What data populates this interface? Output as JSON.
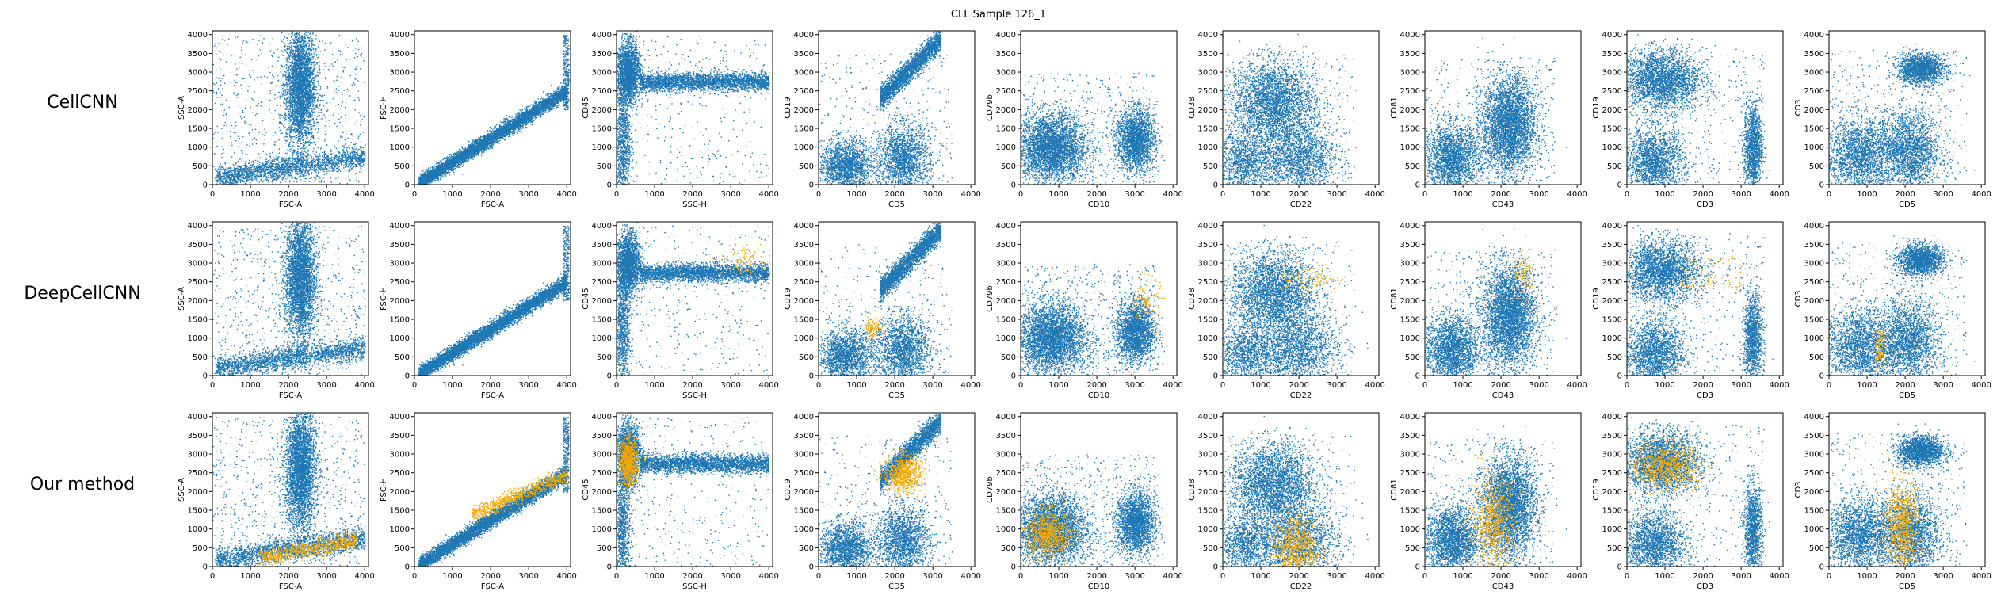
{
  "figure": {
    "suptitle": "CLL Sample 126_1",
    "row_labels": [
      "CellCNN",
      "DeepCellCNN",
      "Our method"
    ],
    "colors": {
      "cells": "#1f77b4",
      "selected": "#f5a800",
      "frame": "#000000"
    }
  },
  "chart_data": {
    "type": "scatter",
    "title": "CLL Sample 126_1",
    "methods": [
      "CellCNN",
      "DeepCellCNN",
      "Our method"
    ],
    "series": [
      {
        "name": "",
        "color": "#1f77b4"
      },
      {
        "name": "",
        "color": "#f5a800"
      }
    ],
    "legend": "none",
    "grid": false,
    "panels": [
      {
        "xlabel": "FSC-A",
        "ylabel": "SSC-A",
        "xlim": [
          0,
          4100
        ],
        "ylim": [
          0,
          4100
        ],
        "xticks": [
          0,
          1000,
          2000,
          3000,
          4000
        ],
        "yticks": [
          0,
          500,
          1000,
          1500,
          2000,
          2500,
          3000,
          3500,
          4000
        ],
        "cells": [
          {
            "kind": "blob",
            "cx": 2300,
            "cy": 2600,
            "sx": 200,
            "sy": 800,
            "w": 5
          },
          {
            "kind": "band",
            "x0": 100,
            "x1": 4000,
            "y0": 200,
            "y1": 750,
            "sd": 150,
            "w": 3
          },
          {
            "kind": "uniform",
            "x0": 0,
            "x1": 4000,
            "y0": 0,
            "y1": 4000,
            "w": 1
          }
        ],
        "selected": [
          [],
          [],
          [
            {
              "kind": "band",
              "x0": 1200,
              "x1": 3800,
              "y0": 250,
              "y1": 700,
              "sd": 110,
              "w": 1
            }
          ]
        ]
      },
      {
        "xlabel": "FSC-A",
        "ylabel": "FSC-H",
        "xlim": [
          0,
          4100
        ],
        "ylim": [
          0,
          4100
        ],
        "xticks": [
          0,
          1000,
          2000,
          3000,
          4000
        ],
        "yticks": [
          0,
          500,
          1000,
          1500,
          2000,
          2500,
          3000,
          3500,
          4000
        ],
        "cells": [
          {
            "kind": "band",
            "x0": 100,
            "x1": 4000,
            "y0": 50,
            "y1": 2500,
            "sd": 100,
            "w": 6
          },
          {
            "kind": "uniform",
            "x0": 3900,
            "x1": 4050,
            "y0": 2000,
            "y1": 4000,
            "w": 0.3
          }
        ],
        "selected": [
          [],
          [],
          [
            {
              "kind": "band",
              "x0": 1500,
              "x1": 4000,
              "y0": 1400,
              "y1": 2450,
              "sd": 100,
              "w": 1
            }
          ]
        ]
      },
      {
        "xlabel": "SSC-H",
        "ylabel": "CD45",
        "xlim": [
          0,
          4100
        ],
        "ylim": [
          0,
          4100
        ],
        "xticks": [
          0,
          1000,
          2000,
          3000,
          4000
        ],
        "yticks": [
          0,
          500,
          1000,
          1500,
          2000,
          2500,
          3000,
          3500,
          4000
        ],
        "cells": [
          {
            "kind": "band",
            "x0": 600,
            "x1": 4000,
            "y0": 2750,
            "y1": 2750,
            "sd": 120,
            "w": 4
          },
          {
            "kind": "blob",
            "cx": 300,
            "cy": 3000,
            "sx": 150,
            "sy": 400,
            "w": 3
          },
          {
            "kind": "blob",
            "cx": 150,
            "cy": 1200,
            "sx": 100,
            "sy": 900,
            "w": 1.5
          },
          {
            "kind": "uniform",
            "x0": 0,
            "x1": 4000,
            "y0": 0,
            "y1": 4000,
            "w": 0.5
          }
        ],
        "selected": [
          [],
          [
            {
              "kind": "blob",
              "cx": 3400,
              "cy": 3100,
              "sx": 300,
              "sy": 200,
              "w": 1
            }
          ],
          [
            {
              "kind": "blob",
              "cx": 300,
              "cy": 2800,
              "sx": 120,
              "sy": 300,
              "w": 1
            }
          ]
        ]
      },
      {
        "xlabel": "CD5",
        "ylabel": "CD19",
        "xlim": [
          0,
          4100
        ],
        "ylim": [
          0,
          4100
        ],
        "xticks": [
          0,
          1000,
          2000,
          3000,
          4000
        ],
        "yticks": [
          0,
          500,
          1000,
          1500,
          2000,
          2500,
          3000,
          3500,
          4000
        ],
        "cells": [
          {
            "kind": "band",
            "x0": 1600,
            "x1": 3200,
            "y0": 2300,
            "y1": 3900,
            "sd": 150,
            "w": 4
          },
          {
            "kind": "blob",
            "cx": 700,
            "cy": 500,
            "sx": 350,
            "sy": 350,
            "w": 3
          },
          {
            "kind": "blob",
            "cx": 2200,
            "cy": 700,
            "sx": 350,
            "sy": 450,
            "w": 3
          },
          {
            "kind": "uniform",
            "x0": 0,
            "x1": 3500,
            "y0": 0,
            "y1": 3500,
            "w": 0.5
          }
        ],
        "selected": [
          [],
          [
            {
              "kind": "blob",
              "cx": 1400,
              "cy": 1300,
              "sx": 120,
              "sy": 150,
              "w": 1
            }
          ],
          [
            {
              "kind": "blob",
              "cx": 2200,
              "cy": 2500,
              "sx": 250,
              "sy": 250,
              "w": 1
            }
          ]
        ]
      },
      {
        "xlabel": "CD10",
        "ylabel": "CD79b",
        "xlim": [
          0,
          4100
        ],
        "ylim": [
          0,
          4100
        ],
        "xticks": [
          0,
          1000,
          2000,
          3000,
          4000
        ],
        "yticks": [
          0,
          500,
          1000,
          1500,
          2000,
          2500,
          3000,
          3500,
          4000
        ],
        "cells": [
          {
            "kind": "blob",
            "cx": 800,
            "cy": 1000,
            "sx": 450,
            "sy": 450,
            "w": 5
          },
          {
            "kind": "blob",
            "cx": 3000,
            "cy": 1200,
            "sx": 250,
            "sy": 400,
            "w": 3
          },
          {
            "kind": "uniform",
            "x0": 0,
            "x1": 3600,
            "y0": 0,
            "y1": 3000,
            "w": 0.7
          }
        ],
        "selected": [
          [],
          [
            {
              "kind": "blob",
              "cx": 3300,
              "cy": 2000,
              "sx": 180,
              "sy": 300,
              "w": 1
            }
          ],
          [
            {
              "kind": "blob",
              "cx": 700,
              "cy": 900,
              "sx": 300,
              "sy": 300,
              "w": 1
            }
          ]
        ]
      },
      {
        "xlabel": "CD22",
        "ylabel": "CD38",
        "xlim": [
          0,
          4100
        ],
        "ylim": [
          0,
          4100
        ],
        "xticks": [
          0,
          1000,
          2000,
          3000,
          4000
        ],
        "yticks": [
          0,
          500,
          1000,
          1500,
          2000,
          2500,
          3000,
          3500,
          4000
        ],
        "cells": [
          {
            "kind": "blob",
            "cx": 1300,
            "cy": 2200,
            "sx": 550,
            "sy": 550,
            "w": 5
          },
          {
            "kind": "blob",
            "cx": 2000,
            "cy": 700,
            "sx": 500,
            "sy": 500,
            "w": 3
          },
          {
            "kind": "blob",
            "cx": 600,
            "cy": 600,
            "sx": 400,
            "sy": 400,
            "w": 2
          },
          {
            "kind": "uniform",
            "x0": 0,
            "x1": 3500,
            "y0": 0,
            "y1": 3600,
            "w": 0.5
          }
        ],
        "selected": [
          [],
          [
            {
              "kind": "blob",
              "cx": 2300,
              "cy": 2600,
              "sx": 400,
              "sy": 200,
              "w": 1
            }
          ],
          [
            {
              "kind": "blob",
              "cx": 1900,
              "cy": 500,
              "sx": 300,
              "sy": 450,
              "w": 1
            }
          ]
        ]
      },
      {
        "xlabel": "CD43",
        "ylabel": "CD81",
        "xlim": [
          0,
          4100
        ],
        "ylim": [
          0,
          4100
        ],
        "xticks": [
          0,
          1000,
          2000,
          3000,
          4000
        ],
        "yticks": [
          0,
          500,
          1000,
          1500,
          2000,
          2500,
          3000,
          3500,
          4000
        ],
        "cells": [
          {
            "kind": "blob",
            "cx": 2200,
            "cy": 1600,
            "sx": 350,
            "sy": 650,
            "w": 5
          },
          {
            "kind": "blob",
            "cx": 700,
            "cy": 700,
            "sx": 350,
            "sy": 450,
            "w": 3
          },
          {
            "kind": "uniform",
            "x0": 0,
            "x1": 3400,
            "y0": 0,
            "y1": 3400,
            "w": 0.5
          }
        ],
        "selected": [
          [],
          [
            {
              "kind": "blob",
              "cx": 2600,
              "cy": 2700,
              "sx": 150,
              "sy": 250,
              "w": 1
            }
          ],
          [
            {
              "kind": "blob",
              "cx": 1800,
              "cy": 1200,
              "sx": 280,
              "sy": 600,
              "w": 1
            }
          ]
        ]
      },
      {
        "xlabel": "CD3",
        "ylabel": "CD19",
        "xlim": [
          0,
          4100
        ],
        "ylim": [
          0,
          4100
        ],
        "xticks": [
          0,
          1000,
          2000,
          3000,
          4000
        ],
        "yticks": [
          0,
          500,
          1000,
          1500,
          2000,
          2500,
          3000,
          3500,
          4000
        ],
        "cells": [
          {
            "kind": "blob",
            "cx": 900,
            "cy": 2800,
            "sx": 500,
            "sy": 400,
            "w": 4
          },
          {
            "kind": "blob",
            "cx": 700,
            "cy": 600,
            "sx": 400,
            "sy": 450,
            "w": 3
          },
          {
            "kind": "blob",
            "cx": 3300,
            "cy": 1000,
            "sx": 120,
            "sy": 600,
            "w": 2
          },
          {
            "kind": "uniform",
            "x0": 0,
            "x1": 3600,
            "y0": 0,
            "y1": 3800,
            "w": 0.5
          }
        ],
        "selected": [
          [],
          [
            {
              "kind": "uniform",
              "x0": 1400,
              "x1": 3000,
              "y0": 2300,
              "y1": 3200,
              "w": 0.3
            }
          ],
          [
            {
              "kind": "blob",
              "cx": 1000,
              "cy": 2700,
              "sx": 450,
              "sy": 300,
              "w": 1
            }
          ]
        ]
      },
      {
        "xlabel": "CD5",
        "ylabel": "CD3",
        "xlim": [
          0,
          4100
        ],
        "ylim": [
          0,
          4100
        ],
        "xticks": [
          0,
          1000,
          2000,
          3000,
          4000
        ],
        "yticks": [
          0,
          500,
          1000,
          1500,
          2000,
          2500,
          3000,
          3500,
          4000
        ],
        "cells": [
          {
            "kind": "blob",
            "cx": 2400,
            "cy": 3100,
            "sx": 300,
            "sy": 200,
            "w": 2.5
          },
          {
            "kind": "blob",
            "cx": 800,
            "cy": 800,
            "sx": 450,
            "sy": 500,
            "w": 3
          },
          {
            "kind": "blob",
            "cx": 2100,
            "cy": 900,
            "sx": 400,
            "sy": 550,
            "w": 3
          },
          {
            "kind": "uniform",
            "x0": 0,
            "x1": 3600,
            "y0": 0,
            "y1": 3600,
            "w": 0.5
          }
        ],
        "selected": [
          [],
          [
            {
              "kind": "blob",
              "cx": 1300,
              "cy": 800,
              "sx": 60,
              "sy": 300,
              "w": 1
            }
          ],
          [
            {
              "kind": "blob",
              "cx": 1900,
              "cy": 1100,
              "sx": 220,
              "sy": 600,
              "w": 1
            }
          ]
        ]
      }
    ]
  }
}
